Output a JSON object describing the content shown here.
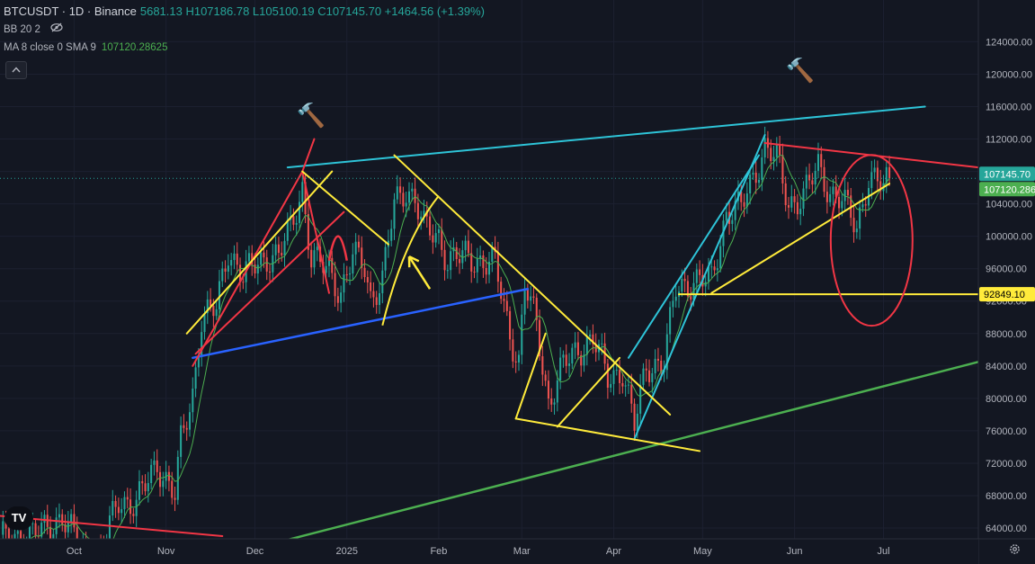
{
  "header": {
    "symbol": "BTCUSDT · 1D · Binance",
    "ohlc": "5681.13  H107186.78  L105100.19  C107145.70  +1464.56 (+1.39%)",
    "indicator_bb": "BB 20 2",
    "eye_icon": "eye-off-icon",
    "indicator_ma": "MA 8 close 0 SMA 9",
    "indicator_ma_value": "107120.28625",
    "collapse_icon": "chevron-up-icon"
  },
  "footer": {
    "logo": "TV",
    "settings_icon": "gear-icon"
  },
  "colors": {
    "background": "#131722",
    "up": "#26a69a",
    "down": "#ef5350",
    "ma": "#4caf50",
    "yellow": "#ffeb3b",
    "red": "#f23645",
    "cyan": "#2ec4d8",
    "blue": "#2962ff",
    "green": "#4caf50"
  },
  "chart_data": {
    "type": "candlestick",
    "y_axis": {
      "min": 60000,
      "max": 126000,
      "ticks": [
        "124000.00",
        "120000.00",
        "116000.00",
        "112000.00",
        "108000.00",
        "104000.00",
        "100000.00",
        "96000.00",
        "92000.00",
        "88000.00",
        "84000.00",
        "80000.00",
        "76000.00",
        "72000.00",
        "68000.00",
        "64000.00"
      ],
      "tick_values": [
        124000,
        120000,
        116000,
        112000,
        108000,
        104000,
        100000,
        96000,
        92000,
        88000,
        84000,
        80000,
        76000,
        72000,
        68000,
        64000
      ]
    },
    "x_axis": {
      "labels": [
        "Oct",
        "Nov",
        "Dec",
        "2025",
        "Feb",
        "Mar",
        "Apr",
        "May",
        "Jun",
        "Jul"
      ],
      "dates": [
        "2024-10-01",
        "2024-11-01",
        "2024-12-01",
        "2025-01-01",
        "2025-02-01",
        "2025-03-01",
        "2025-04-01",
        "2025-05-01",
        "2025-06-01",
        "2025-07-01"
      ],
      "range": [
        "2024-09-06",
        "2025-08-02"
      ]
    },
    "last_price": {
      "value": 107145.7,
      "label": "107145.70",
      "color": "#26a69a"
    },
    "ma_last": {
      "value": 107120.286,
      "label": "107120.286",
      "color": "#4caf50"
    },
    "level_label": {
      "value": 92849.1,
      "label": "92849.10",
      "color": "#ffeb3b"
    },
    "price_path": [
      [
        "2024-09-06",
        62500
      ],
      [
        "2024-09-20",
        63500
      ],
      [
        "2024-09-27",
        65500
      ],
      [
        "2024-10-03",
        61500
      ],
      [
        "2024-10-10",
        60800
      ],
      [
        "2024-10-16",
        67500
      ],
      [
        "2024-10-22",
        67000
      ],
      [
        "2024-10-29",
        72000
      ],
      [
        "2024-11-04",
        68000
      ],
      [
        "2024-11-06",
        74500
      ],
      [
        "2024-11-10",
        80500
      ],
      [
        "2024-11-13",
        90000
      ],
      [
        "2024-11-18",
        91000
      ],
      [
        "2024-11-22",
        98500
      ],
      [
        "2024-11-27",
        95000
      ],
      [
        "2024-12-01",
        96500
      ],
      [
        "2024-12-05",
        97500
      ],
      [
        "2024-12-09",
        97500
      ],
      [
        "2024-12-13",
        101000
      ],
      [
        "2024-12-17",
        106000
      ],
      [
        "2024-12-20",
        97000
      ],
      [
        "2024-12-26",
        96000
      ],
      [
        "2024-12-30",
        93000
      ],
      [
        "2025-01-03",
        97500
      ],
      [
        "2025-01-07",
        96500
      ],
      [
        "2025-01-09",
        92500
      ],
      [
        "2025-01-13",
        94500
      ],
      [
        "2025-01-17",
        104000
      ],
      [
        "2025-01-21",
        106000
      ],
      [
        "2025-01-24",
        104500
      ],
      [
        "2025-01-27",
        101000
      ],
      [
        "2025-02-01",
        100000
      ],
      [
        "2025-02-04",
        97000
      ],
      [
        "2025-02-10",
        97500
      ],
      [
        "2025-02-20",
        96500
      ],
      [
        "2025-02-25",
        88000
      ],
      [
        "2025-02-28",
        84500
      ],
      [
        "2025-03-02",
        94000
      ],
      [
        "2025-03-06",
        89000
      ],
      [
        "2025-03-10",
        79500
      ],
      [
        "2025-03-15",
        84000
      ],
      [
        "2025-03-20",
        86000
      ],
      [
        "2025-03-25",
        87500
      ],
      [
        "2025-03-30",
        82500
      ],
      [
        "2025-04-04",
        83500
      ],
      [
        "2025-04-08",
        76500
      ],
      [
        "2025-04-12",
        84000
      ],
      [
        "2025-04-18",
        84500
      ],
      [
        "2025-04-22",
        93500
      ],
      [
        "2025-04-28",
        94500
      ],
      [
        "2025-05-04",
        94500
      ],
      [
        "2025-05-09",
        103000
      ],
      [
        "2025-05-14",
        103500
      ],
      [
        "2025-05-22",
        111000
      ],
      [
        "2025-05-26",
        109500
      ],
      [
        "2025-05-30",
        104000
      ],
      [
        "2025-06-04",
        105000
      ],
      [
        "2025-06-09",
        108500
      ],
      [
        "2025-06-13",
        105500
      ],
      [
        "2025-06-17",
        104500
      ],
      [
        "2025-06-22",
        101000
      ],
      [
        "2025-06-26",
        107500
      ],
      [
        "2025-07-01",
        106000
      ],
      [
        "2025-07-03",
        107145
      ]
    ],
    "annotations": {
      "red_lines": [
        [
          [
            "2024-11-10",
            84000
          ],
          [
            "2024-12-17",
            108000
          ]
        ],
        [
          [
            "2024-11-11",
            85500
          ],
          [
            "2024-12-31",
            103000
          ]
        ],
        [
          [
            "2024-12-17",
            108000
          ],
          [
            "2024-12-26",
            93000
          ]
        ],
        [
          [
            "2024-12-17",
            108000
          ],
          [
            "2024-12-21",
            112000
          ]
        ],
        [
          [
            "2025-05-22",
            111500
          ],
          [
            "2025-08-02",
            108500
          ]
        ],
        [
          [
            "2024-09-06",
            65500
          ],
          [
            "2024-11-20",
            63000
          ]
        ]
      ],
      "red_arcs": [
        [
          [
            "2024-12-26",
            97000
          ],
          [
            "2024-12-29",
            101000
          ],
          [
            "2025-01-01",
            97000
          ]
        ]
      ],
      "red_circles": [
        {
          "center": [
            "2025-06-27",
            99500
          ],
          "radius_days": 6,
          "radius_price": 3100
        }
      ],
      "cyan_lines": [
        [
          [
            "2024-12-12",
            108500
          ],
          [
            "2025-07-15",
            116000
          ]
        ],
        [
          [
            "2025-04-08",
            75000
          ],
          [
            "2025-05-22",
            112500
          ]
        ],
        [
          [
            "2025-04-06",
            85000
          ],
          [
            "2025-05-20",
            110000
          ]
        ]
      ],
      "blue_lines": [
        [
          [
            "2024-11-10",
            85000
          ],
          [
            "2025-03-03",
            93500
          ]
        ]
      ],
      "green_lines": [
        [
          [
            "2024-11-15",
            60000
          ],
          [
            "2025-08-02",
            84500
          ]
        ]
      ],
      "yellow_lines": [
        [
          [
            "2024-11-08",
            88000
          ],
          [
            "2024-12-27",
            108000
          ]
        ],
        [
          [
            "2024-12-17",
            108000
          ],
          [
            "2025-01-15",
            99000
          ]
        ],
        [
          [
            "2025-01-17",
            110000
          ],
          [
            "2025-04-20",
            78000
          ]
        ],
        [
          [
            "2025-02-27",
            77500
          ],
          [
            "2025-04-30",
            73500
          ]
        ],
        [
          [
            "2025-02-27",
            77500
          ],
          [
            "2025-03-09",
            88000
          ]
        ],
        [
          [
            "2025-03-13",
            76500
          ],
          [
            "2025-04-03",
            85000
          ]
        ],
        [
          [
            "2025-04-23",
            92849
          ],
          [
            "2025-08-02",
            92849
          ]
        ],
        [
          [
            "2025-05-04",
            93000
          ],
          [
            "2025-07-03",
            106500
          ]
        ]
      ],
      "yellow_arcs": [
        [
          [
            "2025-01-13",
            89000
          ],
          [
            "2025-01-20",
            99500
          ],
          [
            "2025-02-01",
            105000
          ]
        ]
      ],
      "yellow_arrows": [
        {
          "from": [
            "2025-01-29",
            93500
          ],
          "to": [
            "2025-01-22",
            97500
          ]
        }
      ],
      "hammer_icons": [
        {
          "date": "2024-12-19",
          "price": 115000
        },
        {
          "date": "2025-06-02",
          "price": 120500
        }
      ]
    }
  }
}
